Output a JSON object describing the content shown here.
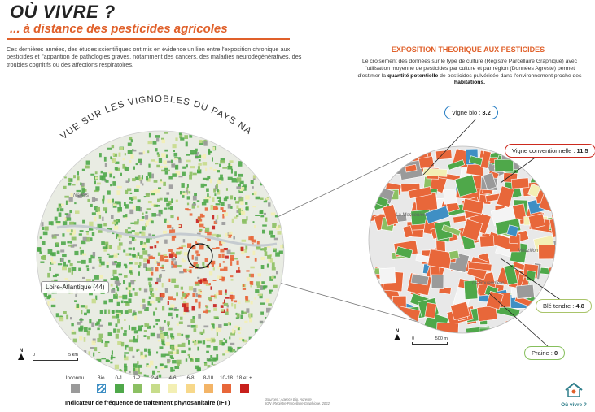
{
  "header": {
    "title": "OÙ VIVRE ?",
    "subtitle": "... à distance des pesticides agricoles"
  },
  "intro": {
    "text": "Ces dernières années, des études scientifiques ont mis en évidence un lien entre l'exposition chronique aux pesticides et l'apparition de pathologies graves, notamment des cancers, des maladies neurodégénératives, des troubles cognitifs ou des affections respiratoires."
  },
  "exposition": {
    "title": "EXPOSITION THEORIQUE AUX PESTICIDES",
    "text_part1": "Le croisement des données sur le type de culture (Registre Parcellaire Graphique) avec l'utilisation moyenne de pesticides par culture et par région (Données Agreste) permet d'estimer la ",
    "text_bold1": "quantité potentielle",
    "text_part2": " de pesticides pulvérisée dans l'environnement proche des ",
    "text_bold2": "habitations."
  },
  "main_map": {
    "arc_title": "VUE SUR LES VIGNOBLES DU PAYS NANTAIS",
    "region_label": "Loire-Atlantique (44)",
    "place_nantes": "Nantes",
    "scale_start": "0",
    "scale_end": "5 km",
    "north": "N"
  },
  "zoom_map": {
    "place_1": "La Mossonière",
    "place_2": "Mouzillon",
    "place_3": "La Rouaudière",
    "scale_start": "0",
    "scale_end": "500 m",
    "north": "N"
  },
  "callouts": {
    "bio_label": "Vigne bio : ",
    "bio_value": "3.2",
    "conv_label": "Vigne conventionnelle : ",
    "conv_value": "11.5",
    "ble_label": "Blé tendre : ",
    "ble_value": "4.8",
    "prairie_label": "Prairie : ",
    "prairie_value": "0"
  },
  "legend": {
    "title": "Indicateur de fréquence de traitement phytosanitaire (IFT)",
    "items": [
      {
        "label": "Inconnu",
        "color": "#9a9a9a"
      },
      {
        "label": "Bio",
        "color": "#3f8fc4"
      },
      {
        "label": "0-1",
        "color": "#4fa84a"
      },
      {
        "label": "1-2",
        "color": "#8cc063"
      },
      {
        "label": "2-4",
        "color": "#c7dc8a"
      },
      {
        "label": "4-6",
        "color": "#f3efb4"
      },
      {
        "label": "6-8",
        "color": "#f7d88a"
      },
      {
        "label": "8-10",
        "color": "#f3b467"
      },
      {
        "label": "10-18",
        "color": "#e8673a"
      },
      {
        "label": "18 et +",
        "color": "#c8201c"
      }
    ]
  },
  "sources": {
    "line1": "Sources : Agence Bio, Agreste",
    "line2": "IGN (Registre Parcellaire Graphique, 2022)"
  },
  "brand": {
    "text": "Où vivre ?"
  },
  "colors": {
    "accent": "#e0602a",
    "bio_border": "#2a7fc4",
    "conv_border": "#cc2a1e",
    "ble_border": "#a9c46a",
    "prairie_border": "#86bf5c"
  }
}
